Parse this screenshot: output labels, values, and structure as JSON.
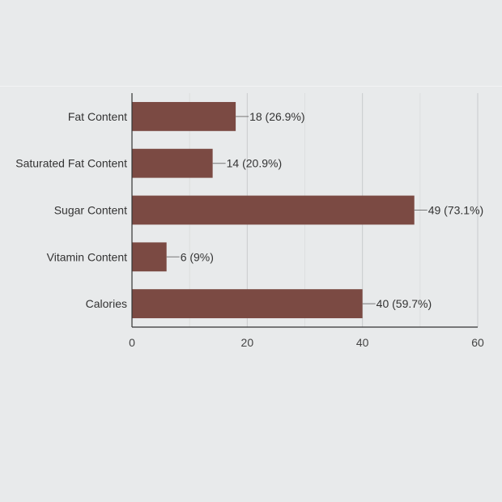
{
  "chart_data": {
    "type": "bar",
    "orientation": "horizontal",
    "categories": [
      "Fat Content",
      "Saturated Fat Content",
      "Sugar Content",
      "Vitamin Content",
      "Calories"
    ],
    "values": [
      18,
      14,
      49,
      6,
      40
    ],
    "data_labels": [
      "18 (26.9%)",
      "14 (20.9%)",
      "49 (73.1%)",
      "6 (9%)",
      "40 (59.7%)"
    ],
    "x_ticks": [
      "0",
      "20",
      "40",
      "60"
    ],
    "xlim": [
      0,
      60
    ],
    "grid": true,
    "bar_color": "#7b4a43",
    "title": "",
    "xlabel": "",
    "ylabel": ""
  }
}
